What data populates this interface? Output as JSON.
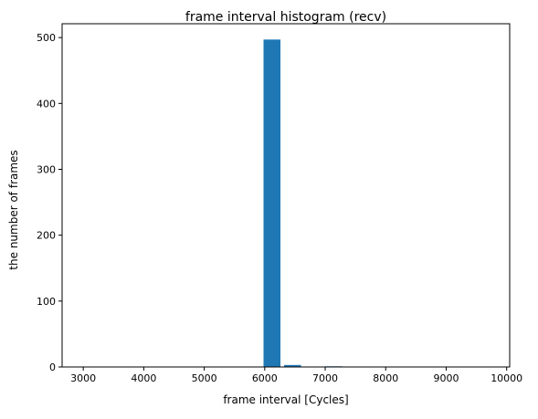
{
  "chart_data": {
    "type": "bar",
    "title": "frame interval histogram (recv)",
    "xlabel": "frame interval [Cycles]",
    "ylabel": "the number of frames",
    "xlim": [
      2650,
      10050
    ],
    "ylim": [
      0,
      521
    ],
    "xticks": [
      3000,
      4000,
      5000,
      6000,
      7000,
      8000,
      9000,
      10000
    ],
    "yticks": [
      0,
      100,
      200,
      300,
      400,
      500
    ],
    "bar_color": "#1f77b4",
    "bars": [
      {
        "x_start": 5980,
        "x_end": 6260,
        "value": 497
      },
      {
        "x_start": 6320,
        "x_end": 6600,
        "value": 3
      },
      {
        "x_start": 6660,
        "x_end": 6940,
        "value": 0
      },
      {
        "x_start": 7000,
        "x_end": 7280,
        "value": 1
      }
    ],
    "grid": false,
    "legend": null
  }
}
